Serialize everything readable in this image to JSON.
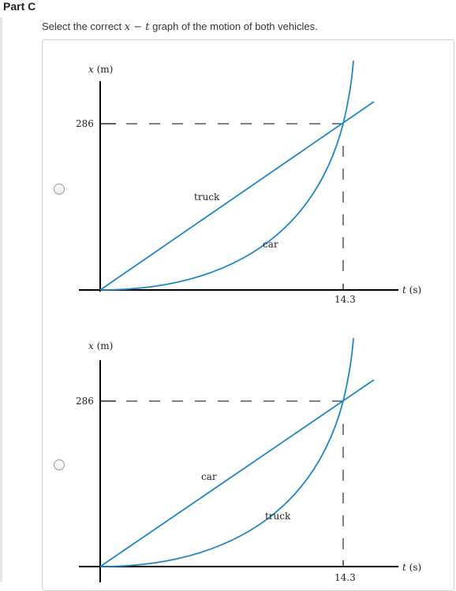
{
  "part": {
    "title": "Part C"
  },
  "question": {
    "prefix": "Select the correct ",
    "math": "x − t",
    "suffix": " graph of the motion of both vehicles."
  },
  "options": [
    {
      "x_axis_label_var": "x",
      "x_axis_label_unit": " (m)",
      "y_tick_label": "286",
      "t_axis_label_var": "t",
      "t_axis_label_unit": " (s)",
      "t_tick_label": "14.3",
      "line_label": "truck",
      "curve_label": "car",
      "selected": false
    },
    {
      "x_axis_label_var": "x",
      "x_axis_label_unit": " (m)",
      "y_tick_label": "286",
      "t_axis_label_var": "t",
      "t_axis_label_unit": " (s)",
      "t_tick_label": "14.3",
      "line_label": "car",
      "curve_label": "truck",
      "selected": false
    }
  ],
  "colors": {
    "curve": "#1f86c6",
    "axis": "#000000"
  }
}
